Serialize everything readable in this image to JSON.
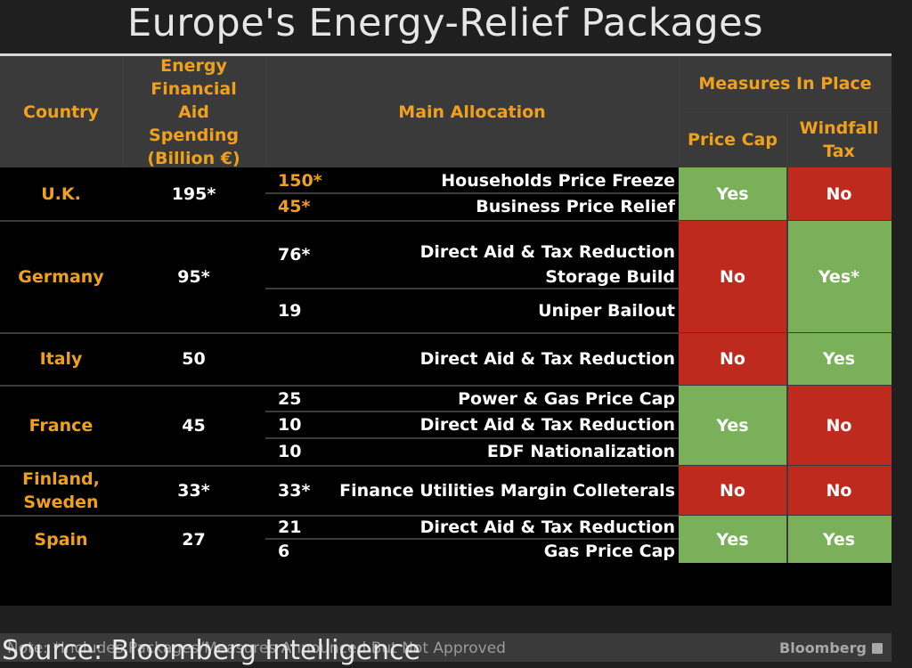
{
  "title": "Europe's Energy-Relief Packages",
  "chart_data": {
    "type": "table",
    "columns": {
      "country": "Country",
      "spending": "Energy Financial Aid Spending (Billion €)",
      "allocation": "Main Allocation",
      "measures": "Measures In Place",
      "price_cap": "Price Cap",
      "windfall_tax": "Windfall Tax"
    },
    "rows": [
      {
        "country": "U.K.",
        "spending": "195*",
        "allocations": [
          {
            "amount": "150*",
            "item": "Households Price Freeze"
          },
          {
            "amount": "45*",
            "item": "Business Price Relief"
          }
        ],
        "price_cap": "Yes",
        "windfall_tax": "No"
      },
      {
        "country": "Germany",
        "spending": "95*",
        "allocations": [
          {
            "amount": "76*",
            "item": "Direct Aid & Tax Reduction",
            "item2": "Storage Build"
          },
          {
            "amount": "19",
            "item": "Uniper Bailout"
          }
        ],
        "price_cap": "No",
        "windfall_tax": "Yes*"
      },
      {
        "country": "Italy",
        "spending": "50",
        "allocations": [
          {
            "amount": "",
            "item": "Direct Aid & Tax Reduction"
          }
        ],
        "price_cap": "No",
        "windfall_tax": "Yes"
      },
      {
        "country": "France",
        "spending": "45",
        "allocations": [
          {
            "amount": "25",
            "item": "Power & Gas Price Cap"
          },
          {
            "amount": "10",
            "item": "Direct Aid & Tax Reduction"
          },
          {
            "amount": "10",
            "item": "EDF Nationalization"
          }
        ],
        "price_cap": "Yes",
        "windfall_tax": "No"
      },
      {
        "country": "Finland, Sweden",
        "spending": "33*",
        "allocations": [
          {
            "amount": "33*",
            "item": "Finance Utilities Margin Colleterals"
          }
        ],
        "price_cap": "No",
        "windfall_tax": "No"
      },
      {
        "country": "Spain",
        "spending": "27",
        "allocations": [
          {
            "amount": "21",
            "item": "Direct Aid & Tax Reduction"
          },
          {
            "amount": "6",
            "item": "Gas Price Cap"
          }
        ],
        "price_cap": "Yes",
        "windfall_tax": "Yes"
      }
    ],
    "note": "Note: *Includes Packages/Measures Announced But Not Approved",
    "brand": "Bloomberg",
    "colors": {
      "yes": "#7ab05a",
      "no": "#bf2a1f",
      "header_text": "#f0a11b",
      "header_bg": "#3a3a3a"
    }
  },
  "source": "Source: Bloomberg Intelligence"
}
